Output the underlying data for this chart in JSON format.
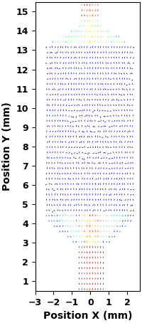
{
  "xlim": [
    -3.0,
    2.7
  ],
  "ylim": [
    0.5,
    15.5
  ],
  "xlabel": "Position X (mm)",
  "ylabel": "Position Y (mm)",
  "xlabel_fontsize": 10,
  "ylabel_fontsize": 10,
  "tick_fontsize": 9,
  "background_color": "#ffffff",
  "nx": 38,
  "ny": 55,
  "x_range": [
    -2.8,
    2.6
  ],
  "y_range": [
    0.55,
    15.3
  ]
}
